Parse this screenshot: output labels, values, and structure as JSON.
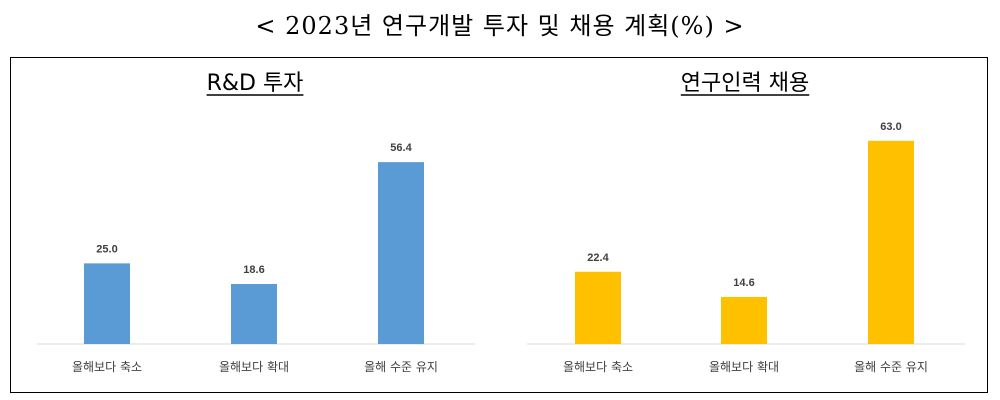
{
  "page_title": "< 2023년 연구개발 투자 및 채용 계획(%) >",
  "colors": {
    "series1": "#5B9BD5",
    "series2": "#FFC000",
    "axis": "#D9D9D9"
  },
  "chart_data": [
    {
      "type": "bar",
      "title": "R&D 투자",
      "categories": [
        "올해보다 축소",
        "올해보다 확대",
        "올해 수준 유지"
      ],
      "values": [
        25.0,
        18.6,
        56.4
      ],
      "value_labels": [
        "25.0",
        "18.6",
        "56.4"
      ],
      "ylim": [
        0,
        70
      ],
      "grid": false,
      "color": "#5B9BD5"
    },
    {
      "type": "bar",
      "title": "연구인력 채용",
      "categories": [
        "올해보다 축소",
        "올해보다 확대",
        "올해 수준 유지"
      ],
      "values": [
        22.4,
        14.6,
        63.0
      ],
      "value_labels": [
        "22.4",
        "14.6",
        "63.0"
      ],
      "ylim": [
        0,
        70
      ],
      "grid": false,
      "color": "#FFC000"
    }
  ]
}
